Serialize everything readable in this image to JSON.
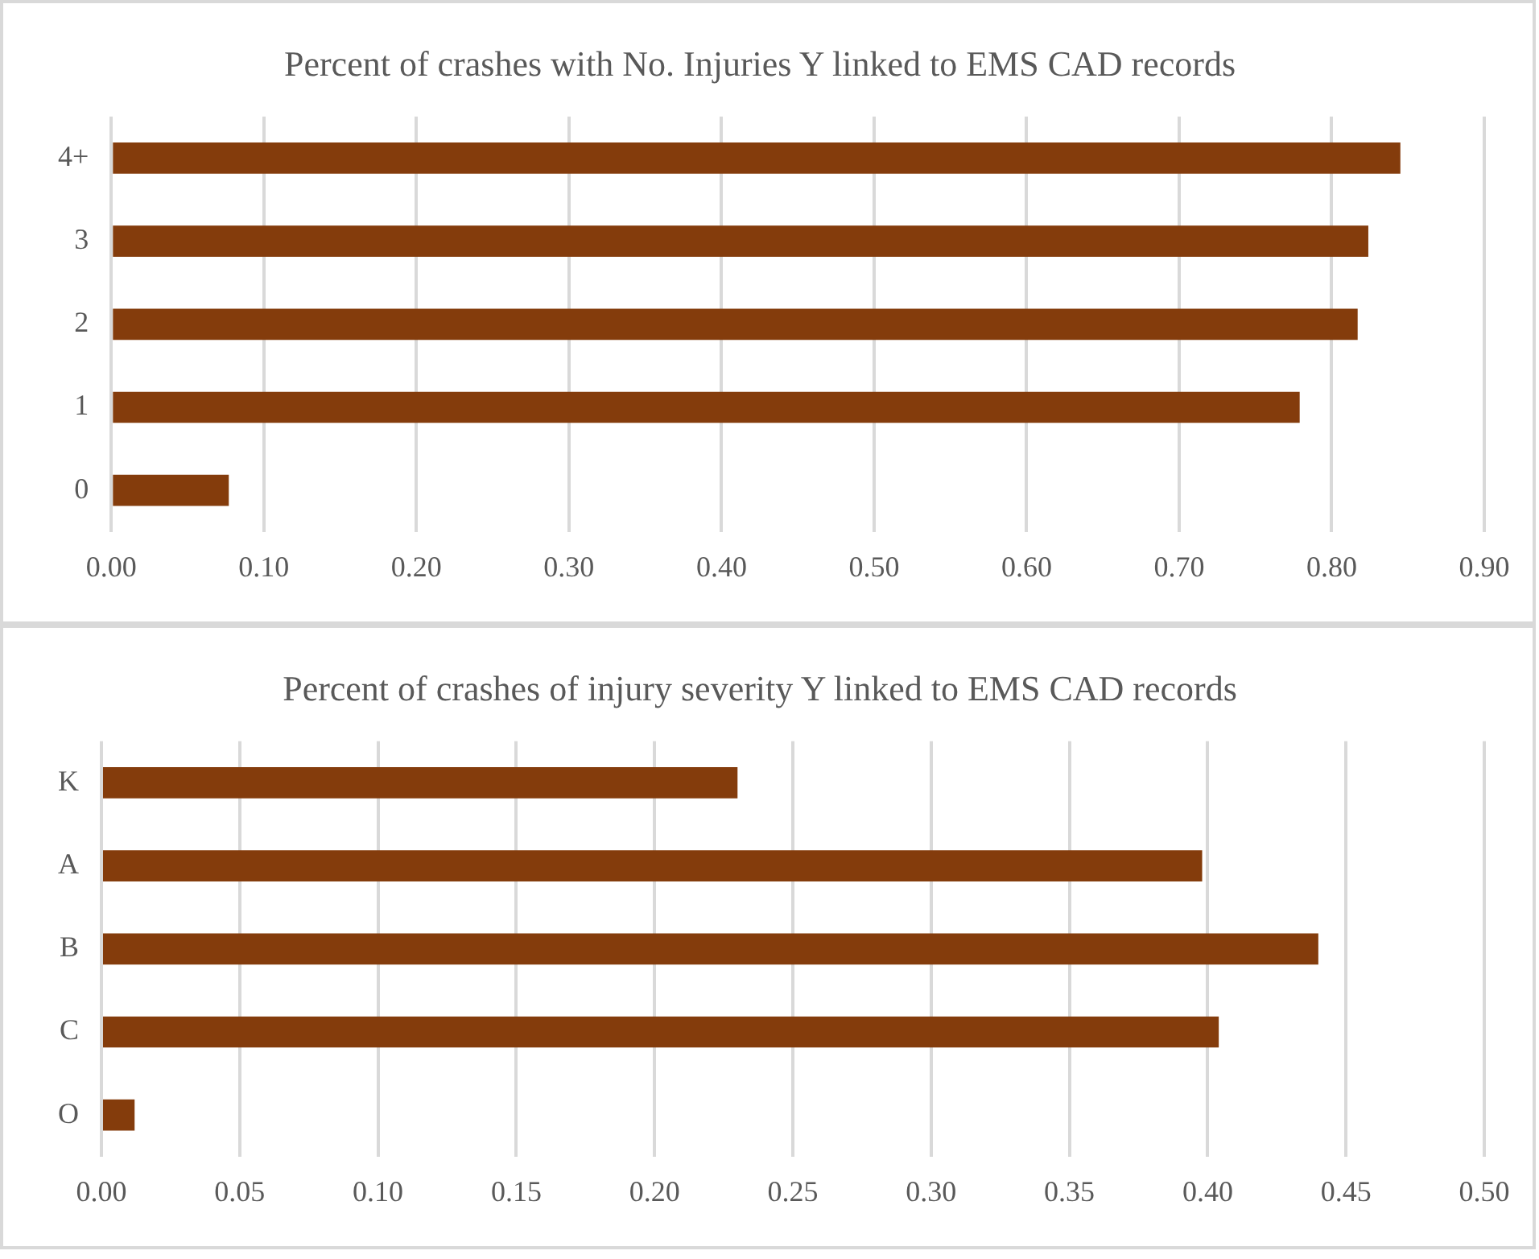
{
  "chart_data": [
    {
      "type": "bar",
      "orientation": "horizontal",
      "title": "Percent of crashes with No. Injuries Y linked to EMS CAD records",
      "categories": [
        "4+",
        "3",
        "2",
        "1",
        "0"
      ],
      "values": [
        0.845,
        0.824,
        0.817,
        0.779,
        0.077
      ],
      "color": "#843c0c",
      "xlim": [
        0,
        0.9
      ],
      "xticks": [
        {
          "value": 0,
          "label": "0.00"
        },
        {
          "value": 0.1,
          "label": "0.10"
        },
        {
          "value": 0.2,
          "label": "0.20"
        },
        {
          "value": 0.3,
          "label": "0.30"
        },
        {
          "value": 0.4,
          "label": "0.40"
        },
        {
          "value": 0.5,
          "label": "0.50"
        },
        {
          "value": 0.6,
          "label": "0.60"
        },
        {
          "value": 0.7,
          "label": "0.70"
        },
        {
          "value": 0.8,
          "label": "0.80"
        },
        {
          "value": 0.9,
          "label": "0.90"
        }
      ],
      "grid": "x"
    },
    {
      "type": "bar",
      "orientation": "horizontal",
      "title": "Percent of crashes of injury severity Y linked to EMS CAD records",
      "categories": [
        "K",
        "A",
        "B",
        "C",
        "O"
      ],
      "values": [
        0.23,
        0.398,
        0.44,
        0.404,
        0.012
      ],
      "color": "#843c0c",
      "xlim": [
        0,
        0.5
      ],
      "xticks": [
        {
          "value": 0,
          "label": "0.00"
        },
        {
          "value": 0.05,
          "label": "0.05"
        },
        {
          "value": 0.1,
          "label": "0.10"
        },
        {
          "value": 0.15,
          "label": "0.15"
        },
        {
          "value": 0.2,
          "label": "0.20"
        },
        {
          "value": 0.25,
          "label": "0.25"
        },
        {
          "value": 0.3,
          "label": "0.30"
        },
        {
          "value": 0.35,
          "label": "0.35"
        },
        {
          "value": 0.4,
          "label": "0.40"
        },
        {
          "value": 0.45,
          "label": "0.45"
        },
        {
          "value": 0.5,
          "label": "0.50"
        }
      ],
      "grid": "x"
    }
  ]
}
